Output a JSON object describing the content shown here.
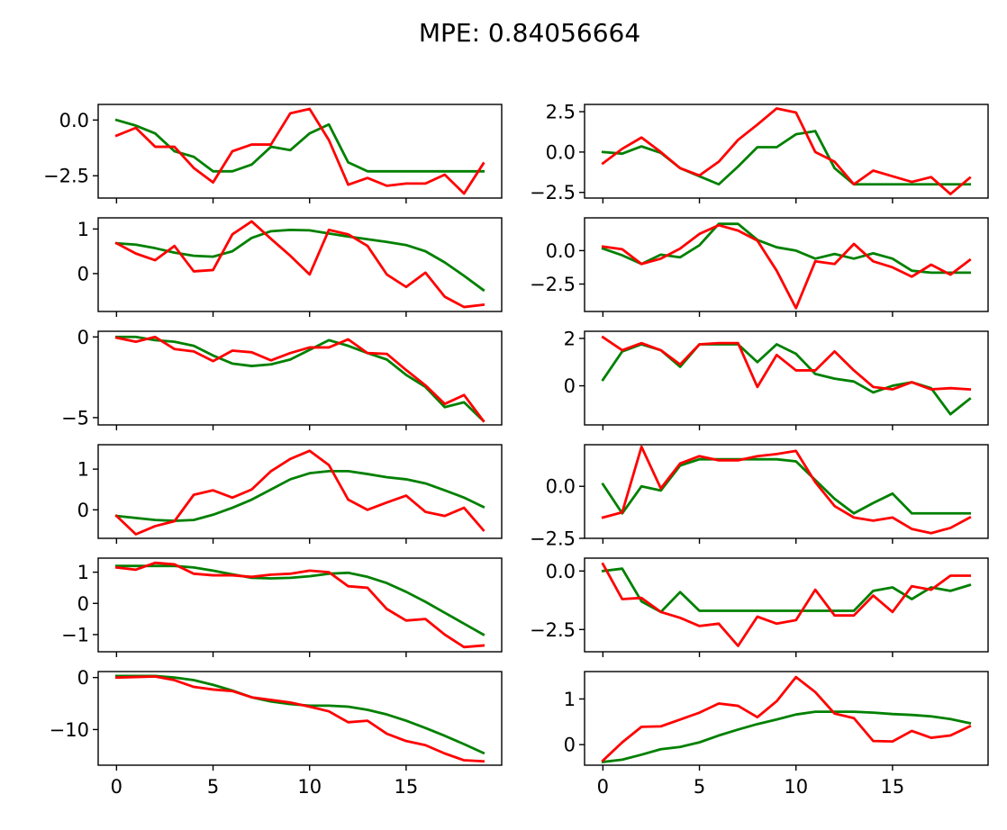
{
  "figure": {
    "title": "MPE: 0.84056664"
  },
  "colors": {
    "green": "#008000",
    "red": "#ff0000"
  },
  "chart_data": [
    {
      "type": "line",
      "row": 0,
      "col": 0,
      "x": [
        0,
        1,
        2,
        3,
        4,
        5,
        6,
        7,
        8,
        9,
        10,
        11,
        12,
        13,
        14,
        15,
        16,
        17,
        18,
        19
      ],
      "xlim": [
        -0.95,
        19.95
      ],
      "ylim": [
        -3.5,
        0.7
      ],
      "yticks": [
        0.0,
        -2.5
      ],
      "ytick_labels": [
        "0.0",
        "−2.5"
      ],
      "xticks": [
        0,
        5,
        10,
        15
      ],
      "xtick_labels": [],
      "series": [
        {
          "color": "green",
          "values": [
            0.0,
            -0.25,
            -0.6,
            -1.4,
            -1.65,
            -2.3,
            -2.3,
            -2.0,
            -1.2,
            -1.35,
            -0.6,
            -0.2,
            -1.9,
            -2.3,
            -2.3,
            -2.3,
            -2.3,
            -2.3,
            -2.3,
            -2.3
          ]
        },
        {
          "color": "red",
          "values": [
            -0.7,
            -0.35,
            -1.2,
            -1.2,
            -2.15,
            -2.8,
            -1.4,
            -1.1,
            -1.1,
            0.3,
            0.5,
            -0.9,
            -2.9,
            -2.6,
            -2.95,
            -2.85,
            -2.85,
            -2.45,
            -3.3,
            -1.95
          ]
        }
      ]
    },
    {
      "type": "line",
      "row": 0,
      "col": 1,
      "x": [
        0,
        1,
        2,
        3,
        4,
        5,
        6,
        7,
        8,
        9,
        10,
        11,
        12,
        13,
        14,
        15,
        16,
        17,
        18,
        19
      ],
      "xlim": [
        -0.95,
        19.95
      ],
      "ylim": [
        -2.85,
        2.95
      ],
      "yticks": [
        2.5,
        0.0,
        -2.5
      ],
      "ytick_labels": [
        "2.5",
        "0.0",
        "−2.5"
      ],
      "xticks": [
        0,
        5,
        10,
        15
      ],
      "xtick_labels": [],
      "series": [
        {
          "color": "green",
          "values": [
            0.0,
            -0.1,
            0.35,
            -0.05,
            -1.0,
            -1.5,
            -2.0,
            -0.9,
            0.3,
            0.3,
            1.1,
            1.3,
            -1.0,
            -2.0,
            -2.0,
            -2.0,
            -2.0,
            -2.0,
            -2.0,
            -2.0
          ]
        },
        {
          "color": "red",
          "values": [
            -0.7,
            0.2,
            0.9,
            0.0,
            -1.0,
            -1.45,
            -0.6,
            0.75,
            1.7,
            2.7,
            2.45,
            0.0,
            -0.6,
            -2.0,
            -1.15,
            -1.5,
            -1.85,
            -1.55,
            -2.6,
            -1.6
          ]
        }
      ]
    },
    {
      "type": "line",
      "row": 1,
      "col": 0,
      "x": [
        0,
        1,
        2,
        3,
        4,
        5,
        6,
        7,
        8,
        9,
        10,
        11,
        12,
        13,
        14,
        15,
        16,
        17,
        18,
        19
      ],
      "xlim": [
        -0.95,
        19.95
      ],
      "ylim": [
        -0.85,
        1.25
      ],
      "yticks": [
        1,
        0
      ],
      "ytick_labels": [
        "1",
        "0"
      ],
      "xticks": [
        0,
        5,
        10,
        15
      ],
      "xtick_labels": [],
      "series": [
        {
          "color": "green",
          "values": [
            0.68,
            0.65,
            0.57,
            0.47,
            0.4,
            0.38,
            0.5,
            0.8,
            0.95,
            0.98,
            0.97,
            0.9,
            0.83,
            0.77,
            0.71,
            0.64,
            0.5,
            0.25,
            -0.05,
            -0.37
          ]
        },
        {
          "color": "red",
          "values": [
            0.68,
            0.45,
            0.3,
            0.62,
            0.05,
            0.08,
            0.88,
            1.17,
            0.78,
            0.4,
            -0.02,
            0.98,
            0.88,
            0.62,
            -0.02,
            -0.3,
            0.02,
            -0.52,
            -0.75,
            -0.7
          ]
        }
      ]
    },
    {
      "type": "line",
      "row": 1,
      "col": 1,
      "x": [
        0,
        1,
        2,
        3,
        4,
        5,
        6,
        7,
        8,
        9,
        10,
        11,
        12,
        13,
        14,
        15,
        16,
        17,
        18,
        19
      ],
      "xlim": [
        -0.95,
        19.95
      ],
      "ylim": [
        -4.55,
        2.45
      ],
      "yticks": [
        0.0,
        -2.5
      ],
      "ytick_labels": [
        "0.0",
        "−2.5"
      ],
      "xticks": [
        0,
        5,
        10,
        15
      ],
      "xtick_labels": [],
      "series": [
        {
          "color": "green",
          "values": [
            0.15,
            -0.35,
            -1.0,
            -0.3,
            -0.5,
            0.4,
            2.0,
            2.0,
            0.8,
            0.25,
            0.0,
            -0.6,
            -0.25,
            -0.6,
            -0.2,
            -0.6,
            -1.5,
            -1.65,
            -1.65,
            -1.65
          ]
        },
        {
          "color": "red",
          "values": [
            0.3,
            0.1,
            -1.0,
            -0.6,
            0.15,
            1.25,
            1.9,
            1.5,
            0.75,
            -1.5,
            -4.3,
            -0.8,
            -1.0,
            0.5,
            -0.8,
            -1.25,
            -1.95,
            -1.05,
            -1.8,
            -0.7
          ]
        }
      ]
    },
    {
      "type": "line",
      "row": 2,
      "col": 0,
      "x": [
        0,
        1,
        2,
        3,
        4,
        5,
        6,
        7,
        8,
        9,
        10,
        11,
        12,
        13,
        14,
        15,
        16,
        17,
        18,
        19
      ],
      "xlim": [
        -0.95,
        19.95
      ],
      "ylim": [
        -5.45,
        0.35
      ],
      "yticks": [
        0,
        -5
      ],
      "ytick_labels": [
        "0",
        "−5"
      ],
      "xticks": [
        0,
        5,
        10,
        15
      ],
      "xtick_labels": [],
      "series": [
        {
          "color": "green",
          "values": [
            0.0,
            0.0,
            -0.2,
            -0.3,
            -0.55,
            -1.15,
            -1.65,
            -1.8,
            -1.7,
            -1.4,
            -0.8,
            -0.2,
            -0.55,
            -1.0,
            -1.4,
            -2.35,
            -3.1,
            -4.35,
            -4.05,
            -5.2
          ]
        },
        {
          "color": "red",
          "values": [
            -0.05,
            -0.3,
            0.0,
            -0.75,
            -0.9,
            -1.5,
            -0.85,
            -0.95,
            -1.45,
            -1.0,
            -0.65,
            -0.65,
            -0.15,
            -1.0,
            -1.05,
            -2.05,
            -3.0,
            -4.15,
            -3.6,
            -5.2
          ]
        }
      ]
    },
    {
      "type": "line",
      "row": 2,
      "col": 1,
      "x": [
        0,
        1,
        2,
        3,
        4,
        5,
        6,
        7,
        8,
        9,
        10,
        11,
        12,
        13,
        14,
        15,
        16,
        17,
        18,
        19
      ],
      "xlim": [
        -0.95,
        19.95
      ],
      "ylim": [
        -1.65,
        2.3
      ],
      "yticks": [
        2,
        0
      ],
      "ytick_labels": [
        "2",
        "0"
      ],
      "xticks": [
        0,
        5,
        10,
        15
      ],
      "xtick_labels": [],
      "series": [
        {
          "color": "green",
          "values": [
            0.25,
            1.45,
            1.75,
            1.5,
            0.8,
            1.75,
            1.75,
            1.75,
            1.0,
            1.75,
            1.35,
            0.5,
            0.3,
            0.18,
            -0.28,
            0.0,
            0.15,
            -0.1,
            -1.2,
            -0.55
          ]
        },
        {
          "color": "red",
          "values": [
            2.05,
            1.5,
            1.8,
            1.5,
            0.9,
            1.75,
            1.8,
            1.8,
            -0.05,
            1.3,
            0.65,
            0.65,
            1.45,
            0.65,
            -0.05,
            -0.15,
            0.15,
            -0.15,
            -0.1,
            -0.15
          ]
        }
      ]
    },
    {
      "type": "line",
      "row": 3,
      "col": 0,
      "x": [
        0,
        1,
        2,
        3,
        4,
        5,
        6,
        7,
        8,
        9,
        10,
        11,
        12,
        13,
        14,
        15,
        16,
        17,
        18,
        19
      ],
      "xlim": [
        -0.95,
        19.95
      ],
      "ylim": [
        -0.7,
        1.6
      ],
      "yticks": [
        1,
        0
      ],
      "ytick_labels": [
        "1",
        "0"
      ],
      "xticks": [
        0,
        5,
        10,
        15
      ],
      "xtick_labels": [],
      "series": [
        {
          "color": "green",
          "values": [
            -0.15,
            -0.2,
            -0.25,
            -0.27,
            -0.25,
            -0.12,
            0.05,
            0.25,
            0.5,
            0.75,
            0.9,
            0.95,
            0.95,
            0.88,
            0.8,
            0.75,
            0.65,
            0.48,
            0.3,
            0.07
          ]
        },
        {
          "color": "red",
          "values": [
            -0.15,
            -0.6,
            -0.4,
            -0.28,
            0.37,
            0.48,
            0.3,
            0.5,
            0.95,
            1.25,
            1.45,
            1.1,
            0.25,
            0.0,
            0.18,
            0.35,
            -0.05,
            -0.15,
            0.05,
            -0.5
          ]
        }
      ]
    },
    {
      "type": "line",
      "row": 3,
      "col": 1,
      "x": [
        0,
        1,
        2,
        3,
        4,
        5,
        6,
        7,
        8,
        9,
        10,
        11,
        12,
        13,
        14,
        15,
        16,
        17,
        18,
        19
      ],
      "xlim": [
        -0.95,
        19.95
      ],
      "ylim": [
        -2.5,
        2.0
      ],
      "yticks": [
        0.0,
        -2.5
      ],
      "ytick_labels": [
        "0.0",
        "−2.5"
      ],
      "xticks": [
        0,
        5,
        10,
        15
      ],
      "xtick_labels": [],
      "series": [
        {
          "color": "green",
          "values": [
            0.1,
            -1.3,
            0.0,
            -0.2,
            1.0,
            1.3,
            1.3,
            1.3,
            1.3,
            1.3,
            1.2,
            0.3,
            -0.6,
            -1.3,
            -0.8,
            -0.35,
            -1.3,
            -1.3,
            -1.3,
            -1.3
          ]
        },
        {
          "color": "red",
          "values": [
            -1.5,
            -1.25,
            1.9,
            -0.1,
            1.1,
            1.45,
            1.25,
            1.25,
            1.45,
            1.55,
            1.7,
            0.2,
            -0.95,
            -1.5,
            -1.65,
            -1.5,
            -2.05,
            -2.25,
            -2.0,
            -1.5
          ]
        }
      ]
    },
    {
      "type": "line",
      "row": 4,
      "col": 0,
      "x": [
        0,
        1,
        2,
        3,
        4,
        5,
        6,
        7,
        8,
        9,
        10,
        11,
        12,
        13,
        14,
        15,
        16,
        17,
        18,
        19
      ],
      "xlim": [
        -0.95,
        19.95
      ],
      "ylim": [
        -1.55,
        1.45
      ],
      "yticks": [
        1,
        0,
        -1
      ],
      "ytick_labels": [
        "1",
        "0",
        "−1"
      ],
      "xticks": [
        0,
        5,
        10,
        15
      ],
      "xtick_labels": [],
      "series": [
        {
          "color": "green",
          "values": [
            1.2,
            1.2,
            1.2,
            1.2,
            1.15,
            1.05,
            0.93,
            0.82,
            0.8,
            0.82,
            0.87,
            0.95,
            0.98,
            0.85,
            0.65,
            0.37,
            0.05,
            -0.3,
            -0.65,
            -1.0
          ]
        },
        {
          "color": "red",
          "values": [
            1.15,
            1.08,
            1.3,
            1.25,
            0.95,
            0.9,
            0.9,
            0.85,
            0.92,
            0.95,
            1.05,
            1.0,
            0.55,
            0.5,
            -0.18,
            -0.55,
            -0.5,
            -1.0,
            -1.4,
            -1.35
          ]
        }
      ]
    },
    {
      "type": "line",
      "row": 4,
      "col": 1,
      "x": [
        0,
        1,
        2,
        3,
        4,
        5,
        6,
        7,
        8,
        9,
        10,
        11,
        12,
        13,
        14,
        15,
        16,
        17,
        18,
        19
      ],
      "xlim": [
        -0.95,
        19.95
      ],
      "ylim": [
        -3.45,
        0.55
      ],
      "yticks": [
        0.0,
        -2.5
      ],
      "ytick_labels": [
        "0.0",
        "−2.5"
      ],
      "xticks": [
        0,
        5,
        10,
        15
      ],
      "xtick_labels": [],
      "series": [
        {
          "color": "green",
          "values": [
            0.0,
            0.1,
            -1.3,
            -1.75,
            -0.9,
            -1.7,
            -1.7,
            -1.7,
            -1.7,
            -1.7,
            -1.7,
            -1.7,
            -1.7,
            -1.7,
            -0.85,
            -0.7,
            -1.2,
            -0.7,
            -0.85,
            -0.6
          ]
        },
        {
          "color": "red",
          "values": [
            0.3,
            -1.2,
            -1.15,
            -1.75,
            -2.0,
            -2.35,
            -2.25,
            -3.2,
            -1.95,
            -2.25,
            -2.1,
            -0.8,
            -1.9,
            -1.9,
            -1.05,
            -1.75,
            -0.65,
            -0.8,
            -0.2,
            -0.2
          ]
        }
      ]
    },
    {
      "type": "line",
      "row": 5,
      "col": 0,
      "x": [
        0,
        1,
        2,
        3,
        4,
        5,
        6,
        7,
        8,
        9,
        10,
        11,
        12,
        13,
        14,
        15,
        16,
        17,
        18,
        19
      ],
      "xlim": [
        -0.95,
        19.95
      ],
      "ylim": [
        -16.85,
        1.15
      ],
      "yticks": [
        0,
        -10
      ],
      "ytick_labels": [
        "0",
        "−10"
      ],
      "xticks": [
        0,
        5,
        10,
        15
      ],
      "xtick_labels": [
        "0",
        "5",
        "10",
        "15"
      ],
      "series": [
        {
          "color": "green",
          "values": [
            0.3,
            0.3,
            0.3,
            0.0,
            -0.5,
            -1.4,
            -2.5,
            -3.8,
            -4.6,
            -5.1,
            -5.4,
            -5.4,
            -5.6,
            -6.2,
            -7.1,
            -8.3,
            -9.7,
            -11.2,
            -12.8,
            -14.5
          ]
        },
        {
          "color": "red",
          "values": [
            0.0,
            0.1,
            0.2,
            -0.5,
            -1.8,
            -2.3,
            -2.6,
            -3.8,
            -4.3,
            -4.8,
            -5.6,
            -6.5,
            -8.6,
            -8.3,
            -10.8,
            -12.2,
            -13.0,
            -14.6,
            -15.9,
            -16.1
          ]
        }
      ]
    },
    {
      "type": "line",
      "row": 5,
      "col": 1,
      "x": [
        0,
        1,
        2,
        3,
        4,
        5,
        6,
        7,
        8,
        9,
        10,
        11,
        12,
        13,
        14,
        15,
        16,
        17,
        18,
        19
      ],
      "xlim": [
        -0.95,
        19.95
      ],
      "ylim": [
        -0.45,
        1.6
      ],
      "yticks": [
        1,
        0
      ],
      "ytick_labels": [
        "1",
        "0"
      ],
      "xticks": [
        0,
        5,
        10,
        15
      ],
      "xtick_labels": [
        "0",
        "5",
        "10",
        "15"
      ],
      "series": [
        {
          "color": "green",
          "values": [
            -0.38,
            -0.33,
            -0.22,
            -0.1,
            -0.05,
            0.05,
            0.2,
            0.33,
            0.45,
            0.55,
            0.66,
            0.72,
            0.72,
            0.72,
            0.7,
            0.67,
            0.65,
            0.62,
            0.56,
            0.47
          ]
        },
        {
          "color": "red",
          "values": [
            -0.35,
            0.05,
            0.39,
            0.4,
            0.55,
            0.7,
            0.9,
            0.85,
            0.6,
            0.95,
            1.48,
            1.15,
            0.68,
            0.58,
            0.08,
            0.07,
            0.3,
            0.15,
            0.2,
            0.4
          ]
        }
      ]
    }
  ]
}
